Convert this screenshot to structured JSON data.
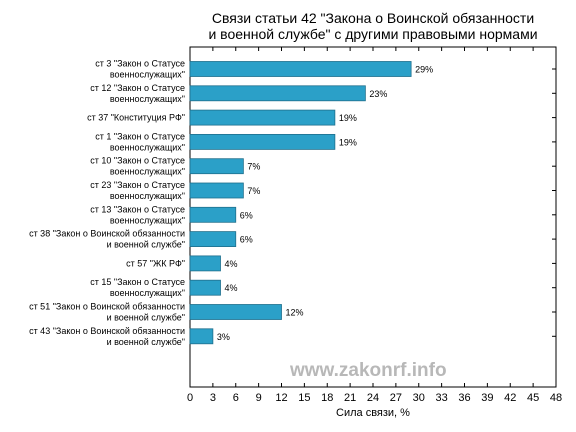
{
  "watermark": "www.zakonrf.info",
  "chart_data": {
    "type": "bar",
    "orientation": "horizontal",
    "title_lines": [
      "Связи статьи 42 \"Закона о Воинской обязанности",
      "и военной службе\" с другими правовыми нормами"
    ],
    "xlabel": "Сила связи, %",
    "ylabel": "",
    "xlim": [
      0,
      48
    ],
    "xticks": [
      0,
      3,
      6,
      9,
      12,
      15,
      18,
      21,
      24,
      27,
      30,
      33,
      36,
      39,
      42,
      45,
      48
    ],
    "grid": false,
    "bar_color": "#2ba0c8",
    "categories": [
      [
        "ст 3 \"Закон о Статусе",
        "военнослужащих\""
      ],
      [
        "ст 12 \"Закон о Статусе",
        "военнослужащих\""
      ],
      [
        "ст 37 \"Конституция РФ\""
      ],
      [
        "ст 1 \"Закон о Статусе",
        "военнослужащих\""
      ],
      [
        "ст 10 \"Закон о Статусе",
        "военнослужащих\""
      ],
      [
        "ст 23 \"Закон о Статусе",
        "военнослужащих\""
      ],
      [
        "ст 13 \"Закон о Статусе",
        "военнослужащих\""
      ],
      [
        "ст 38 \"Закон о Воинской обязанности",
        "и военной службе\""
      ],
      [
        "ст 57 \"ЖК РФ\""
      ],
      [
        "ст 15 \"Закон о Статусе",
        "военнослужащих\""
      ],
      [
        "ст 51 \"Закон о Воинской обязанности",
        "и военной службе\""
      ],
      [
        "ст 43 \"Закон о Воинской обязанности",
        "и военной службе\""
      ]
    ],
    "values": [
      29,
      23,
      19,
      19,
      7,
      7,
      6,
      6,
      4,
      4,
      12,
      3
    ],
    "value_labels": [
      "29%",
      "23%",
      "19%",
      "19%",
      "7%",
      "7%",
      "6%",
      "6%",
      "4%",
      "4%",
      "12%",
      "3%"
    ]
  }
}
